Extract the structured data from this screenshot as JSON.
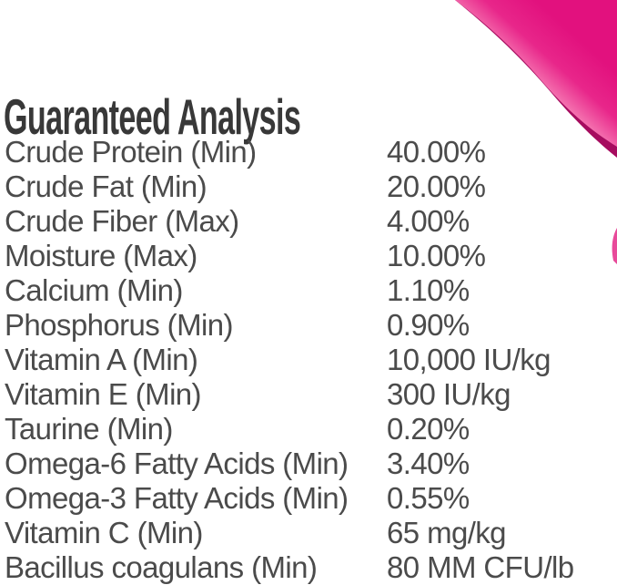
{
  "page": {
    "background": "#ffffff"
  },
  "header": {
    "title": "Guaranteed Analysis"
  },
  "table": {
    "rows": [
      {
        "label": "Crude Protein (Min)",
        "value": "40.00%"
      },
      {
        "label": "Crude Fat (Min)",
        "value": "20.00%"
      },
      {
        "label": "Crude Fiber (Max)",
        "value": "4.00%"
      },
      {
        "label": "Moisture (Max)",
        "value": "10.00%"
      },
      {
        "label": "Calcium (Min)",
        "value": "1.10%"
      },
      {
        "label": "Phosphorus (Min)",
        "value": "0.90%"
      },
      {
        "label": "Vitamin A (Min)",
        "value": "10,000 IU/kg"
      },
      {
        "label": "Vitamin E (Min)",
        "value": "300 IU/kg"
      },
      {
        "label": "Taurine (Min)",
        "value": "0.20%"
      },
      {
        "label": "Omega-6 Fatty Acids (Min)",
        "value": "3.40%"
      },
      {
        "label": "Omega-3 Fatty Acids (Min)",
        "value": "0.55%"
      },
      {
        "label": "Vitamin C (Min)",
        "value": "65 mg/kg"
      },
      {
        "label": "Bacillus coagulans (Min)",
        "value": "80 MM CFU/lb"
      }
    ]
  },
  "decoration": {
    "name": "pink-corner-swoosh",
    "colors": {
      "main": "#e2117e",
      "highlight": "#f577b2",
      "mid": "#e8268a",
      "shadow": "#a60c5f",
      "sliver": "#e84a9a"
    }
  },
  "text_colors": {
    "title": "#383838",
    "body": "#4b4b4b"
  }
}
